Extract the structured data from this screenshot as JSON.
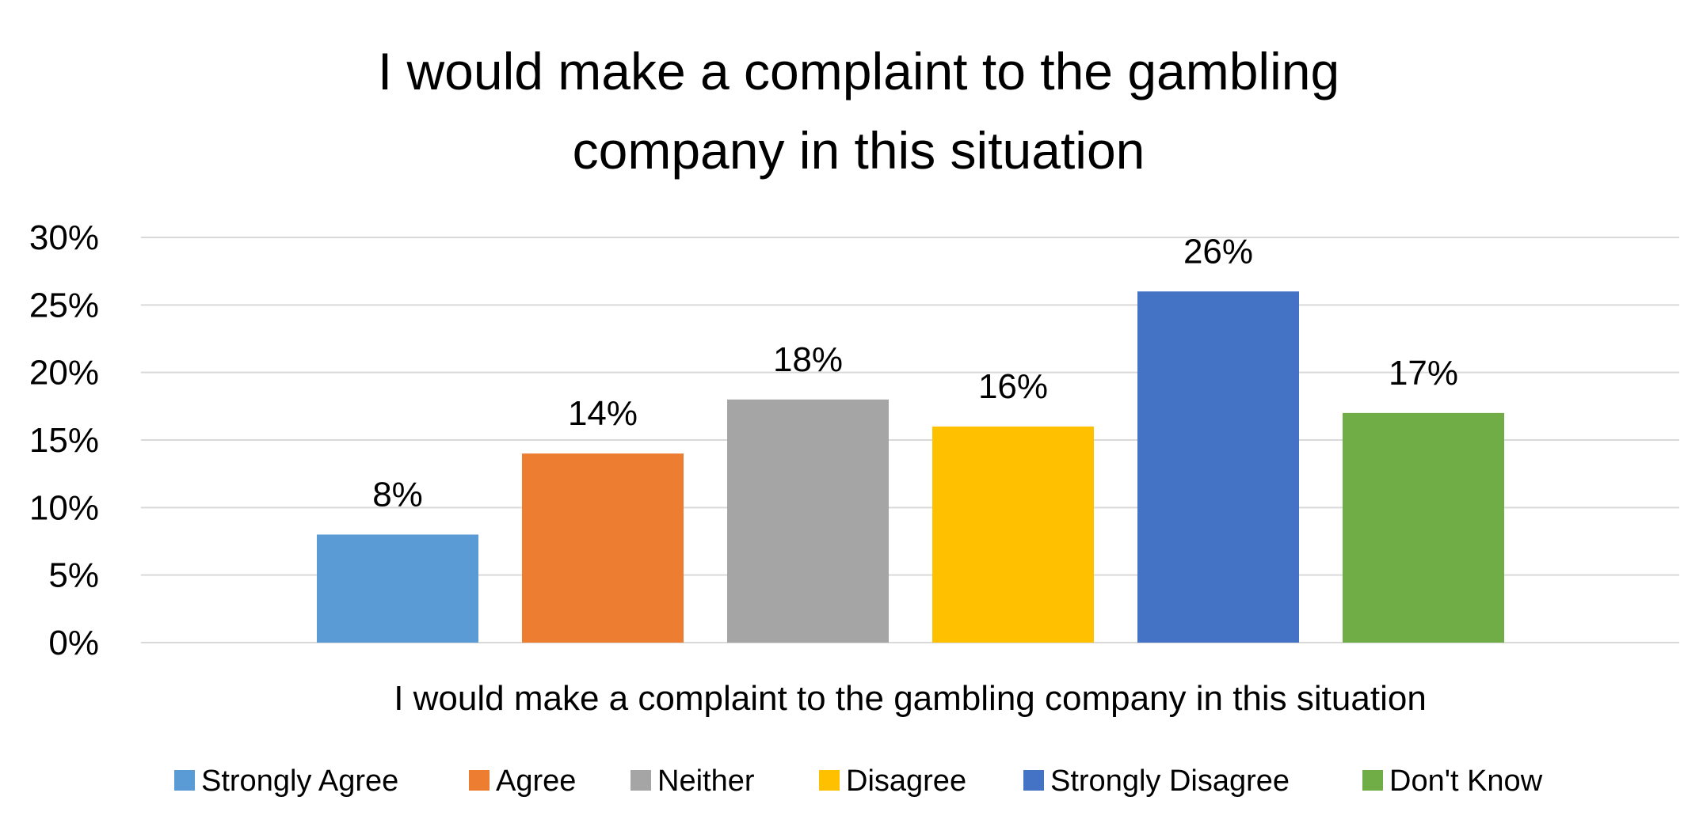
{
  "chart_data": {
    "type": "bar",
    "title": "I would make a complaint to the gambling company in this situation",
    "title_lines": [
      "I would make a complaint to the gambling",
      "company in this situation"
    ],
    "xlabel": "I would make a complaint to the gambling company in this situation",
    "ylabel": "",
    "ylim": [
      0,
      0.3
    ],
    "yticks": [
      {
        "value": 0.3,
        "label": "30%"
      },
      {
        "value": 0.25,
        "label": "25%"
      },
      {
        "value": 0.2,
        "label": "20%"
      },
      {
        "value": 0.15,
        "label": "15%"
      },
      {
        "value": 0.1,
        "label": "10%"
      },
      {
        "value": 0.05,
        "label": "5%"
      },
      {
        "value": 0.0,
        "label": "0%"
      }
    ],
    "grid": true,
    "legend_position": "bottom",
    "series": [
      {
        "name": "Strongly Agree",
        "value": 0.08,
        "label": "8%",
        "color": "#5b9bd5"
      },
      {
        "name": "Agree",
        "value": 0.14,
        "label": "14%",
        "color": "#ed7d31"
      },
      {
        "name": "Neither",
        "value": 0.18,
        "label": "18%",
        "color": "#a5a5a5"
      },
      {
        "name": "Disagree",
        "value": 0.16,
        "label": "16%",
        "color": "#ffc000"
      },
      {
        "name": "Strongly Disagree",
        "value": 0.26,
        "label": "26%",
        "color": "#4472c4"
      },
      {
        "name": "Don't Know",
        "value": 0.17,
        "label": "17%",
        "color": "#70ad47"
      }
    ]
  }
}
